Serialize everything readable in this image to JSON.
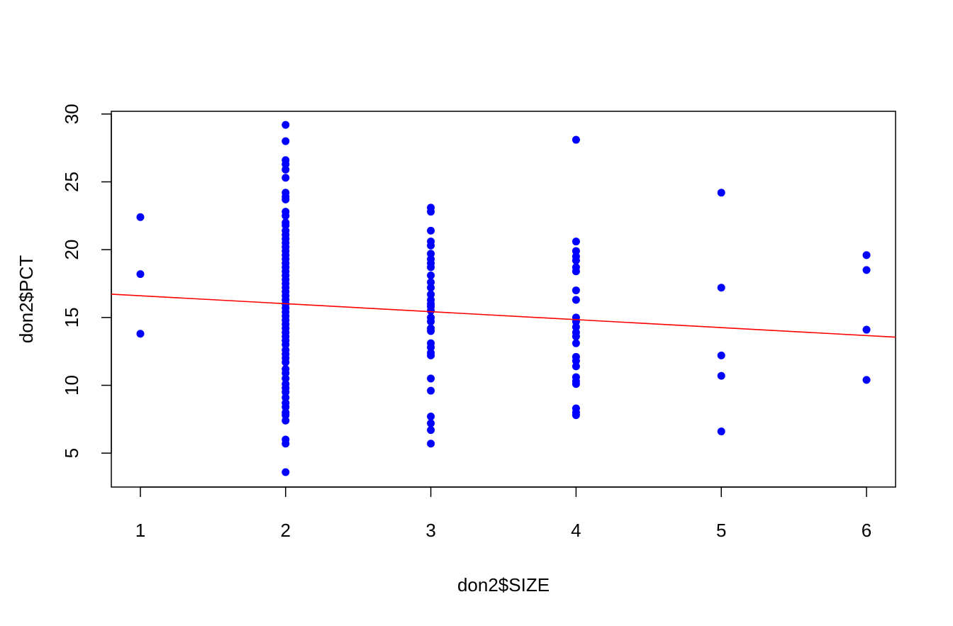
{
  "chart_data": {
    "type": "scatter",
    "title": "",
    "xlabel": "don2$SIZE",
    "ylabel": "don2$PCT",
    "xlim": [
      0.8,
      6.2
    ],
    "ylim": [
      2.5,
      30.2
    ],
    "x_ticks": [
      1,
      2,
      3,
      4,
      5,
      6
    ],
    "y_ticks": [
      5,
      10,
      15,
      20,
      25,
      30
    ],
    "grid": false,
    "legend": "none",
    "point_color": "#0000ff",
    "line_color": "#ff0000",
    "regression_line": {
      "x": [
        0.8,
        6.2
      ],
      "y": [
        16.72,
        13.55
      ]
    },
    "points": [
      [
        1,
        22.4
      ],
      [
        1,
        18.2
      ],
      [
        1,
        13.8
      ],
      [
        2,
        29.2
      ],
      [
        2,
        28.0
      ],
      [
        2,
        26.6
      ],
      [
        2,
        26.3
      ],
      [
        2,
        25.9
      ],
      [
        2,
        25.3
      ],
      [
        2,
        24.2
      ],
      [
        2,
        23.9
      ],
      [
        2,
        23.7
      ],
      [
        2,
        22.8
      ],
      [
        2,
        22.5
      ],
      [
        2,
        22.0
      ],
      [
        2,
        21.8
      ],
      [
        2,
        21.4
      ],
      [
        2,
        21.1
      ],
      [
        2,
        20.8
      ],
      [
        2,
        20.5
      ],
      [
        2,
        20.2
      ],
      [
        2,
        19.9
      ],
      [
        2,
        19.6
      ],
      [
        2,
        19.3
      ],
      [
        2,
        19.0
      ],
      [
        2,
        18.7
      ],
      [
        2,
        18.4
      ],
      [
        2,
        18.1
      ],
      [
        2,
        17.8
      ],
      [
        2,
        17.5
      ],
      [
        2,
        17.2
      ],
      [
        2,
        16.9
      ],
      [
        2,
        16.6
      ],
      [
        2,
        16.3
      ],
      [
        2,
        16.0
      ],
      [
        2,
        15.7
      ],
      [
        2,
        15.4
      ],
      [
        2,
        15.1
      ],
      [
        2,
        14.8
      ],
      [
        2,
        14.5
      ],
      [
        2,
        14.2
      ],
      [
        2,
        13.9
      ],
      [
        2,
        13.6
      ],
      [
        2,
        13.3
      ],
      [
        2,
        13.0
      ],
      [
        2,
        12.6
      ],
      [
        2,
        12.3
      ],
      [
        2,
        12.0
      ],
      [
        2,
        11.7
      ],
      [
        2,
        11.2
      ],
      [
        2,
        10.9
      ],
      [
        2,
        10.5
      ],
      [
        2,
        10.1
      ],
      [
        2,
        9.8
      ],
      [
        2,
        9.5
      ],
      [
        2,
        9.1
      ],
      [
        2,
        8.7
      ],
      [
        2,
        8.4
      ],
      [
        2,
        8.0
      ],
      [
        2,
        7.8
      ],
      [
        2,
        7.4
      ],
      [
        2,
        6.0
      ],
      [
        2,
        5.7
      ],
      [
        2,
        3.6
      ],
      [
        3,
        23.1
      ],
      [
        3,
        22.8
      ],
      [
        3,
        21.4
      ],
      [
        3,
        20.6
      ],
      [
        3,
        20.3
      ],
      [
        3,
        19.7
      ],
      [
        3,
        19.3
      ],
      [
        3,
        19.0
      ],
      [
        3,
        18.7
      ],
      [
        3,
        18.1
      ],
      [
        3,
        17.6
      ],
      [
        3,
        17.2
      ],
      [
        3,
        16.7
      ],
      [
        3,
        16.3
      ],
      [
        3,
        16.0
      ],
      [
        3,
        15.8
      ],
      [
        3,
        15.5
      ],
      [
        3,
        15.0
      ],
      [
        3,
        14.7
      ],
      [
        3,
        14.2
      ],
      [
        3,
        14.0
      ],
      [
        3,
        13.1
      ],
      [
        3,
        12.8
      ],
      [
        3,
        12.4
      ],
      [
        3,
        12.2
      ],
      [
        3,
        10.5
      ],
      [
        3,
        9.6
      ],
      [
        3,
        7.7
      ],
      [
        3,
        7.2
      ],
      [
        3,
        6.7
      ],
      [
        3,
        5.7
      ],
      [
        4,
        28.1
      ],
      [
        4,
        20.6
      ],
      [
        4,
        19.9
      ],
      [
        4,
        19.5
      ],
      [
        4,
        19.2
      ],
      [
        4,
        18.7
      ],
      [
        4,
        18.4
      ],
      [
        4,
        17.0
      ],
      [
        4,
        16.3
      ],
      [
        4,
        15.0
      ],
      [
        4,
        14.7
      ],
      [
        4,
        14.3
      ],
      [
        4,
        13.9
      ],
      [
        4,
        13.6
      ],
      [
        4,
        13.1
      ],
      [
        4,
        12.1
      ],
      [
        4,
        11.8
      ],
      [
        4,
        11.4
      ],
      [
        4,
        10.6
      ],
      [
        4,
        10.3
      ],
      [
        4,
        10.1
      ],
      [
        4,
        8.3
      ],
      [
        4,
        8.0
      ],
      [
        4,
        7.8
      ],
      [
        5,
        24.2
      ],
      [
        5,
        17.2
      ],
      [
        5,
        12.2
      ],
      [
        5,
        10.7
      ],
      [
        5,
        6.6
      ],
      [
        6,
        19.6
      ],
      [
        6,
        18.5
      ],
      [
        6,
        14.1
      ],
      [
        6,
        10.4
      ]
    ]
  }
}
